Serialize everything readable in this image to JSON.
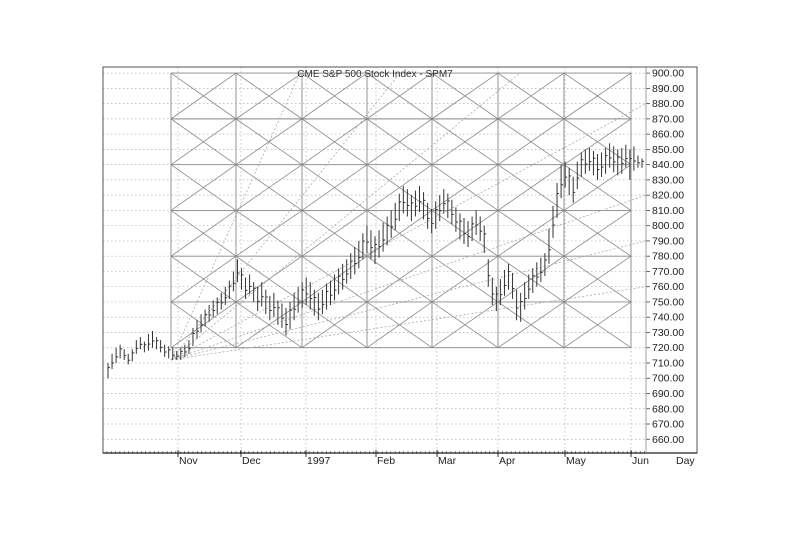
{
  "chart_data": {
    "type": "bar",
    "subtype": "ohlc-bars",
    "title": "CME S&P 500 Stock Index - SPM7",
    "x_tick_labels": [
      "Nov",
      "Dec",
      "1997",
      "Feb",
      "Mar",
      "Apr",
      "May",
      "Jun"
    ],
    "x_axis_unit_label": "Day",
    "y_tick_labels": [
      "900.00",
      "890.00",
      "880.00",
      "870.00",
      "860.00",
      "850.00",
      "840.00",
      "830.00",
      "820.00",
      "810.00",
      "800.00",
      "790.00",
      "780.00",
      "770.00",
      "760.00",
      "750.00",
      "740.00",
      "730.00",
      "720.00",
      "710.00",
      "700.00",
      "690.00",
      "680.00",
      "670.00",
      "660.00"
    ],
    "ylim": [
      651,
      904
    ],
    "grid": "dotted",
    "colors": {
      "bars": "#333333",
      "grid": "#b0b0b0",
      "frame": "#555555",
      "overlay": "#888888",
      "fan": "#aaaaaa"
    },
    "bars": [
      {
        "low": 700,
        "high": 710
      },
      {
        "low": 706,
        "high": 716
      },
      {
        "low": 710,
        "high": 720
      },
      {
        "low": 713,
        "high": 722
      },
      {
        "low": 712,
        "high": 719
      },
      {
        "low": 709,
        "high": 716
      },
      {
        "low": 711,
        "high": 719
      },
      {
        "low": 716,
        "high": 725
      },
      {
        "low": 719,
        "high": 727
      },
      {
        "low": 717,
        "high": 724
      },
      {
        "low": 718,
        "high": 729
      },
      {
        "low": 720,
        "high": 731
      },
      {
        "low": 719,
        "high": 727
      },
      {
        "low": 717,
        "high": 725
      },
      {
        "low": 714,
        "high": 722
      },
      {
        "low": 713,
        "high": 721
      },
      {
        "low": 712,
        "high": 720
      },
      {
        "low": 712,
        "high": 718
      },
      {
        "low": 712,
        "high": 720
      },
      {
        "low": 714,
        "high": 722
      },
      {
        "low": 716,
        "high": 725
      },
      {
        "low": 721,
        "high": 733
      },
      {
        "low": 726,
        "high": 738
      },
      {
        "low": 730,
        "high": 742
      },
      {
        "low": 734,
        "high": 745
      },
      {
        "low": 737,
        "high": 748
      },
      {
        "low": 740,
        "high": 751
      },
      {
        "low": 742,
        "high": 753
      },
      {
        "low": 745,
        "high": 756
      },
      {
        "low": 748,
        "high": 760
      },
      {
        "low": 752,
        "high": 764
      },
      {
        "low": 757,
        "high": 770
      },
      {
        "low": 763,
        "high": 778
      },
      {
        "low": 758,
        "high": 772
      },
      {
        "low": 752,
        "high": 766
      },
      {
        "low": 755,
        "high": 768
      },
      {
        "low": 750,
        "high": 763
      },
      {
        "low": 744,
        "high": 760
      },
      {
        "low": 747,
        "high": 763
      },
      {
        "low": 742,
        "high": 758
      },
      {
        "low": 738,
        "high": 754
      },
      {
        "low": 740,
        "high": 756
      },
      {
        "low": 735,
        "high": 751
      },
      {
        "low": 733,
        "high": 749
      },
      {
        "low": 728,
        "high": 746
      },
      {
        "low": 732,
        "high": 750
      },
      {
        "low": 738,
        "high": 756
      },
      {
        "low": 743,
        "high": 760
      },
      {
        "low": 746,
        "high": 763
      },
      {
        "low": 748,
        "high": 766
      },
      {
        "low": 745,
        "high": 763
      },
      {
        "low": 741,
        "high": 758
      },
      {
        "low": 738,
        "high": 756
      },
      {
        "low": 742,
        "high": 758
      },
      {
        "low": 745,
        "high": 762
      },
      {
        "low": 748,
        "high": 764
      },
      {
        "low": 751,
        "high": 768
      },
      {
        "low": 755,
        "high": 772
      },
      {
        "low": 758,
        "high": 775
      },
      {
        "low": 762,
        "high": 778
      },
      {
        "low": 765,
        "high": 782
      },
      {
        "low": 768,
        "high": 786
      },
      {
        "low": 772,
        "high": 790
      },
      {
        "low": 778,
        "high": 795
      },
      {
        "low": 782,
        "high": 800
      },
      {
        "low": 778,
        "high": 797
      },
      {
        "low": 775,
        "high": 793
      },
      {
        "low": 779,
        "high": 797
      },
      {
        "low": 783,
        "high": 802
      },
      {
        "low": 787,
        "high": 806
      },
      {
        "low": 792,
        "high": 810
      },
      {
        "low": 797,
        "high": 815
      },
      {
        "low": 803,
        "high": 821
      },
      {
        "low": 808,
        "high": 826
      },
      {
        "low": 806,
        "high": 824
      },
      {
        "low": 803,
        "high": 820
      },
      {
        "low": 806,
        "high": 823
      },
      {
        "low": 809,
        "high": 826
      },
      {
        "low": 804,
        "high": 822
      },
      {
        "low": 798,
        "high": 815
      },
      {
        "low": 795,
        "high": 811
      },
      {
        "low": 798,
        "high": 816
      },
      {
        "low": 803,
        "high": 820
      },
      {
        "low": 808,
        "high": 824
      },
      {
        "low": 805,
        "high": 821
      },
      {
        "low": 801,
        "high": 817
      },
      {
        "low": 796,
        "high": 812
      },
      {
        "low": 791,
        "high": 808
      },
      {
        "low": 788,
        "high": 805
      },
      {
        "low": 786,
        "high": 803
      },
      {
        "low": 790,
        "high": 806
      },
      {
        "low": 794,
        "high": 810
      },
      {
        "low": 790,
        "high": 806
      },
      {
        "low": 782,
        "high": 800
      },
      {
        "low": 760,
        "high": 778
      },
      {
        "low": 748,
        "high": 766
      },
      {
        "low": 744,
        "high": 760
      },
      {
        "low": 748,
        "high": 765
      },
      {
        "low": 754,
        "high": 771
      },
      {
        "low": 758,
        "high": 775
      },
      {
        "low": 752,
        "high": 769
      },
      {
        "low": 738,
        "high": 758
      },
      {
        "low": 737,
        "high": 756
      },
      {
        "low": 745,
        "high": 763
      },
      {
        "low": 752,
        "high": 768
      },
      {
        "low": 756,
        "high": 772
      },
      {
        "low": 760,
        "high": 776
      },
      {
        "low": 763,
        "high": 779
      },
      {
        "low": 767,
        "high": 782
      },
      {
        "low": 775,
        "high": 798
      },
      {
        "low": 792,
        "high": 813
      },
      {
        "low": 805,
        "high": 828
      },
      {
        "low": 818,
        "high": 840
      },
      {
        "low": 825,
        "high": 842
      },
      {
        "low": 820,
        "high": 838
      },
      {
        "low": 815,
        "high": 832
      },
      {
        "low": 824,
        "high": 842
      },
      {
        "low": 832,
        "high": 848
      },
      {
        "low": 834,
        "high": 850
      },
      {
        "low": 836,
        "high": 851
      },
      {
        "low": 833,
        "high": 849
      },
      {
        "low": 830,
        "high": 847
      },
      {
        "low": 832,
        "high": 848
      },
      {
        "low": 834,
        "high": 851
      },
      {
        "low": 838,
        "high": 854
      },
      {
        "low": 835,
        "high": 852
      },
      {
        "low": 833,
        "high": 850
      },
      {
        "low": 834,
        "high": 851
      },
      {
        "low": 838,
        "high": 853
      },
      {
        "low": 830,
        "high": 850
      },
      {
        "low": 836,
        "high": 852
      },
      {
        "low": 838,
        "high": 846
      },
      {
        "low": 838,
        "high": 844
      }
    ]
  }
}
